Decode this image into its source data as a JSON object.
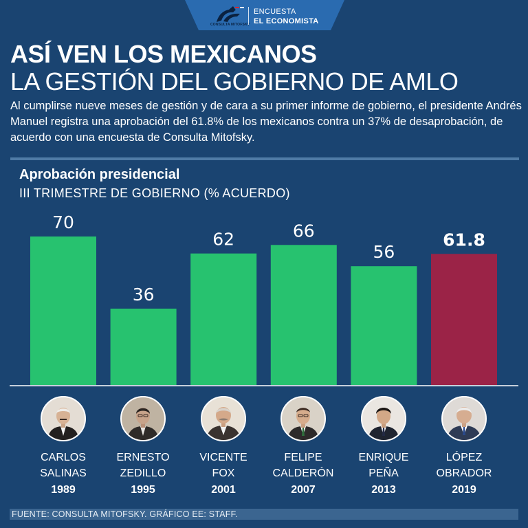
{
  "header": {
    "logo_text": "CONSULTA MITOFSKY",
    "label_small": "ENCUESTA",
    "label_big": "EL ECONOMISTA"
  },
  "title": {
    "line1": "ASÍ VEN LOS MEXICANOS",
    "line2": "LA GESTIÓN DEL GOBIERNO DE AMLO"
  },
  "intro": "Al cumplirse nueve meses de gestión y de cara a su primer informe de gobierno, el presidente Andrés Manuel registra una aprobación del 61.8% de los mexicanos contra un 37% de desaprobación, de acuerdo con una encuesta de Consulta Mitofsky.",
  "colors": {
    "background": "#1a4471",
    "bar": "#27c26f",
    "highlight": "#9b2347",
    "separator": "#4f7ba6"
  },
  "chart_data": {
    "type": "bar",
    "title": "Aprobación presidencial",
    "subtitle": "III TRIMESTRE DE GOBIERNO (% ACUERDO)",
    "categories": [
      "CARLOS SALINAS 1989",
      "ERNESTO ZEDILLO 1995",
      "VICENTE FOX 2001",
      "FELIPE CALDERÓN 2007",
      "ENRIQUE PEÑA 2013",
      "LÓPEZ OBRADOR 2019"
    ],
    "values": [
      70,
      36,
      62,
      66,
      56,
      61.8
    ],
    "value_labels": [
      "70",
      "36",
      "62",
      "66",
      "56",
      "61.8"
    ],
    "highlight_index": 5,
    "ylim": [
      0,
      70
    ]
  },
  "presidents": [
    {
      "first": "CARLOS",
      "last": "SALINAS",
      "year": "1989",
      "icon": "portrait-icon"
    },
    {
      "first": "ERNESTO",
      "last": "ZEDILLO",
      "year": "1995",
      "icon": "portrait-icon"
    },
    {
      "first": "VICENTE",
      "last": "FOX",
      "year": "2001",
      "icon": "portrait-icon"
    },
    {
      "first": "FELIPE",
      "last": "CALDERÓN",
      "year": "2007",
      "icon": "portrait-icon"
    },
    {
      "first": "ENRIQUE",
      "last": "PEÑA",
      "year": "2013",
      "icon": "portrait-icon"
    },
    {
      "first": "LÓPEZ",
      "last": "OBRADOR",
      "year": "2019",
      "icon": "portrait-icon"
    }
  ],
  "footer": "FUENTE: CONSULTA MITOFSKY. GRÁFICO EE: STAFF."
}
